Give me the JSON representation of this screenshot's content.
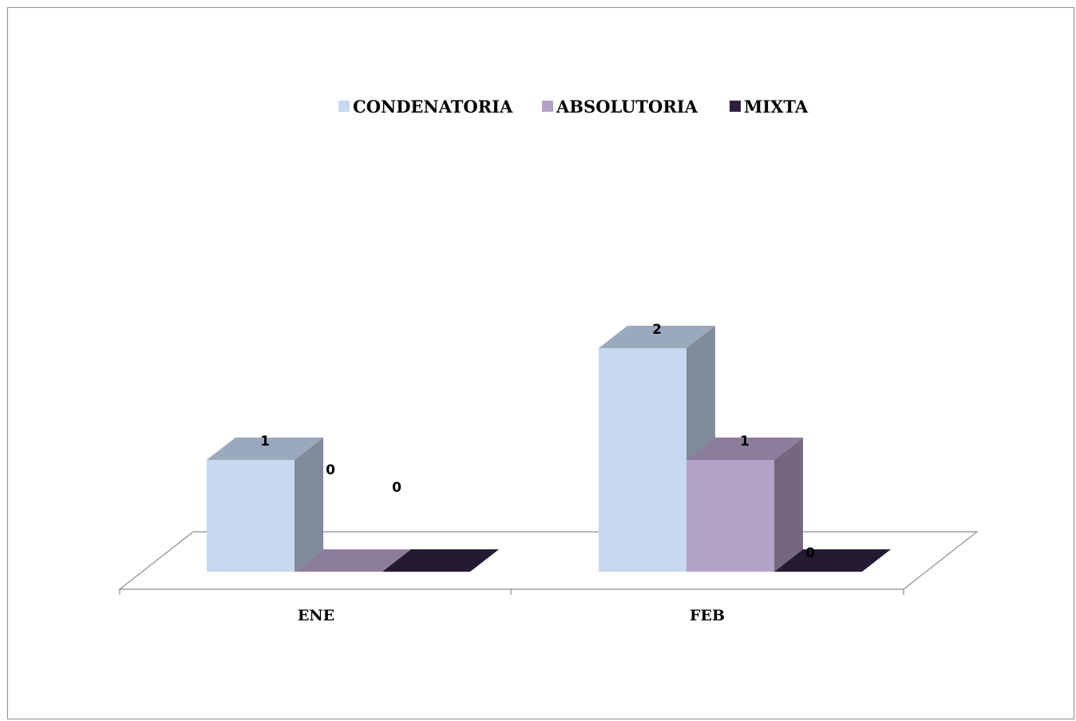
{
  "chart_data": {
    "type": "bar",
    "categories": [
      "ENE",
      "FEB"
    ],
    "series": [
      {
        "name": "CONDENATORIA",
        "values": [
          1,
          2
        ]
      },
      {
        "name": "ABSOLUTORIA",
        "values": [
          0,
          1
        ]
      },
      {
        "name": "MIXTA",
        "values": [
          0,
          0
        ]
      }
    ],
    "title": "",
    "xlabel": "",
    "ylabel": "",
    "ylim": [
      0,
      2
    ],
    "grid": false,
    "legend_position": "top",
    "three_d": true,
    "data_labels": true,
    "colors": [
      "#c6d9f1",
      "#b3a2c7",
      "#2e2140"
    ]
  }
}
